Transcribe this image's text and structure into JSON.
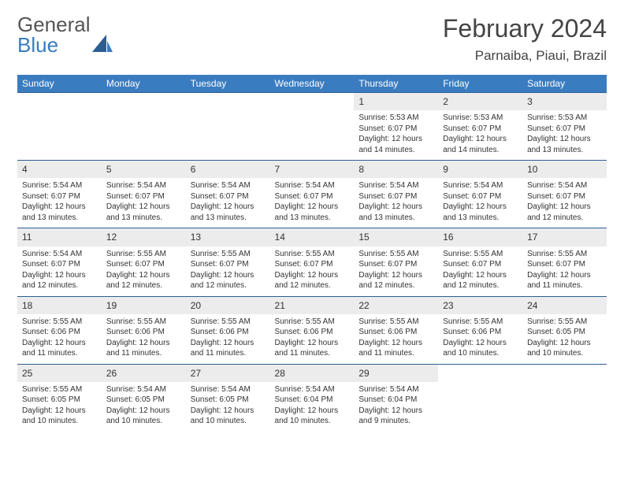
{
  "brand": {
    "part1": "General",
    "part2": "Blue"
  },
  "title": {
    "month": "February 2024",
    "location": "Parnaiba, Piaui, Brazil"
  },
  "colors": {
    "header_bg": "#3a7cc0",
    "week_border": "#2d5e92",
    "daynum_bg": "#ececec",
    "text": "#333333"
  },
  "dayHeaders": [
    "Sunday",
    "Monday",
    "Tuesday",
    "Wednesday",
    "Thursday",
    "Friday",
    "Saturday"
  ],
  "weeks": [
    [
      {
        "n": "",
        "sunrise": "",
        "sunset": "",
        "daylight": ""
      },
      {
        "n": "",
        "sunrise": "",
        "sunset": "",
        "daylight": ""
      },
      {
        "n": "",
        "sunrise": "",
        "sunset": "",
        "daylight": ""
      },
      {
        "n": "",
        "sunrise": "",
        "sunset": "",
        "daylight": ""
      },
      {
        "n": "1",
        "sunrise": "Sunrise: 5:53 AM",
        "sunset": "Sunset: 6:07 PM",
        "daylight": "Daylight: 12 hours and 14 minutes."
      },
      {
        "n": "2",
        "sunrise": "Sunrise: 5:53 AM",
        "sunset": "Sunset: 6:07 PM",
        "daylight": "Daylight: 12 hours and 14 minutes."
      },
      {
        "n": "3",
        "sunrise": "Sunrise: 5:53 AM",
        "sunset": "Sunset: 6:07 PM",
        "daylight": "Daylight: 12 hours and 13 minutes."
      }
    ],
    [
      {
        "n": "4",
        "sunrise": "Sunrise: 5:54 AM",
        "sunset": "Sunset: 6:07 PM",
        "daylight": "Daylight: 12 hours and 13 minutes."
      },
      {
        "n": "5",
        "sunrise": "Sunrise: 5:54 AM",
        "sunset": "Sunset: 6:07 PM",
        "daylight": "Daylight: 12 hours and 13 minutes."
      },
      {
        "n": "6",
        "sunrise": "Sunrise: 5:54 AM",
        "sunset": "Sunset: 6:07 PM",
        "daylight": "Daylight: 12 hours and 13 minutes."
      },
      {
        "n": "7",
        "sunrise": "Sunrise: 5:54 AM",
        "sunset": "Sunset: 6:07 PM",
        "daylight": "Daylight: 12 hours and 13 minutes."
      },
      {
        "n": "8",
        "sunrise": "Sunrise: 5:54 AM",
        "sunset": "Sunset: 6:07 PM",
        "daylight": "Daylight: 12 hours and 13 minutes."
      },
      {
        "n": "9",
        "sunrise": "Sunrise: 5:54 AM",
        "sunset": "Sunset: 6:07 PM",
        "daylight": "Daylight: 12 hours and 13 minutes."
      },
      {
        "n": "10",
        "sunrise": "Sunrise: 5:54 AM",
        "sunset": "Sunset: 6:07 PM",
        "daylight": "Daylight: 12 hours and 12 minutes."
      }
    ],
    [
      {
        "n": "11",
        "sunrise": "Sunrise: 5:54 AM",
        "sunset": "Sunset: 6:07 PM",
        "daylight": "Daylight: 12 hours and 12 minutes."
      },
      {
        "n": "12",
        "sunrise": "Sunrise: 5:55 AM",
        "sunset": "Sunset: 6:07 PM",
        "daylight": "Daylight: 12 hours and 12 minutes."
      },
      {
        "n": "13",
        "sunrise": "Sunrise: 5:55 AM",
        "sunset": "Sunset: 6:07 PM",
        "daylight": "Daylight: 12 hours and 12 minutes."
      },
      {
        "n": "14",
        "sunrise": "Sunrise: 5:55 AM",
        "sunset": "Sunset: 6:07 PM",
        "daylight": "Daylight: 12 hours and 12 minutes."
      },
      {
        "n": "15",
        "sunrise": "Sunrise: 5:55 AM",
        "sunset": "Sunset: 6:07 PM",
        "daylight": "Daylight: 12 hours and 12 minutes."
      },
      {
        "n": "16",
        "sunrise": "Sunrise: 5:55 AM",
        "sunset": "Sunset: 6:07 PM",
        "daylight": "Daylight: 12 hours and 12 minutes."
      },
      {
        "n": "17",
        "sunrise": "Sunrise: 5:55 AM",
        "sunset": "Sunset: 6:07 PM",
        "daylight": "Daylight: 12 hours and 11 minutes."
      }
    ],
    [
      {
        "n": "18",
        "sunrise": "Sunrise: 5:55 AM",
        "sunset": "Sunset: 6:06 PM",
        "daylight": "Daylight: 12 hours and 11 minutes."
      },
      {
        "n": "19",
        "sunrise": "Sunrise: 5:55 AM",
        "sunset": "Sunset: 6:06 PM",
        "daylight": "Daylight: 12 hours and 11 minutes."
      },
      {
        "n": "20",
        "sunrise": "Sunrise: 5:55 AM",
        "sunset": "Sunset: 6:06 PM",
        "daylight": "Daylight: 12 hours and 11 minutes."
      },
      {
        "n": "21",
        "sunrise": "Sunrise: 5:55 AM",
        "sunset": "Sunset: 6:06 PM",
        "daylight": "Daylight: 12 hours and 11 minutes."
      },
      {
        "n": "22",
        "sunrise": "Sunrise: 5:55 AM",
        "sunset": "Sunset: 6:06 PM",
        "daylight": "Daylight: 12 hours and 11 minutes."
      },
      {
        "n": "23",
        "sunrise": "Sunrise: 5:55 AM",
        "sunset": "Sunset: 6:06 PM",
        "daylight": "Daylight: 12 hours and 10 minutes."
      },
      {
        "n": "24",
        "sunrise": "Sunrise: 5:55 AM",
        "sunset": "Sunset: 6:05 PM",
        "daylight": "Daylight: 12 hours and 10 minutes."
      }
    ],
    [
      {
        "n": "25",
        "sunrise": "Sunrise: 5:55 AM",
        "sunset": "Sunset: 6:05 PM",
        "daylight": "Daylight: 12 hours and 10 minutes."
      },
      {
        "n": "26",
        "sunrise": "Sunrise: 5:54 AM",
        "sunset": "Sunset: 6:05 PM",
        "daylight": "Daylight: 12 hours and 10 minutes."
      },
      {
        "n": "27",
        "sunrise": "Sunrise: 5:54 AM",
        "sunset": "Sunset: 6:05 PM",
        "daylight": "Daylight: 12 hours and 10 minutes."
      },
      {
        "n": "28",
        "sunrise": "Sunrise: 5:54 AM",
        "sunset": "Sunset: 6:04 PM",
        "daylight": "Daylight: 12 hours and 10 minutes."
      },
      {
        "n": "29",
        "sunrise": "Sunrise: 5:54 AM",
        "sunset": "Sunset: 6:04 PM",
        "daylight": "Daylight: 12 hours and 9 minutes."
      },
      {
        "n": "",
        "sunrise": "",
        "sunset": "",
        "daylight": ""
      },
      {
        "n": "",
        "sunrise": "",
        "sunset": "",
        "daylight": ""
      }
    ]
  ]
}
